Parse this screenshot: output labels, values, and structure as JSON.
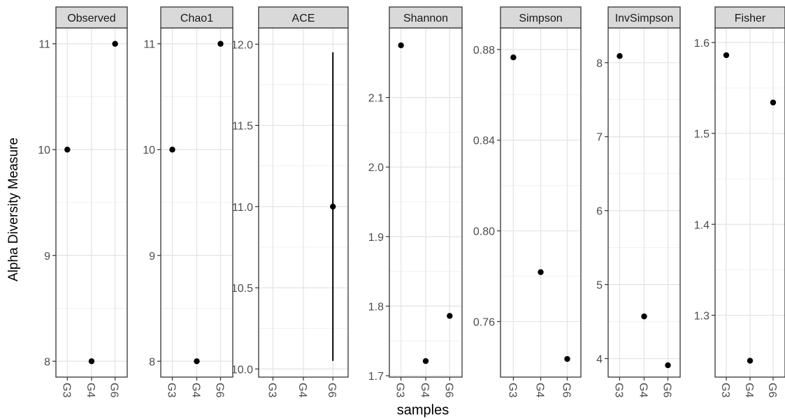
{
  "chart_data": {
    "type": "scatter",
    "ylabel": "Alpha Diversity Measure",
    "xlabel": "samples",
    "categories": [
      "G3",
      "G4",
      "G6"
    ],
    "grid": true,
    "panels": [
      {
        "name": "Observed",
        "yticks": [
          "8",
          "9",
          "10",
          "11"
        ],
        "tick_values": [
          8,
          9,
          10,
          11
        ],
        "ylim": [
          7.85,
          11.15
        ],
        "points": [
          {
            "x": "G3",
            "y": 10
          },
          {
            "x": "G4",
            "y": 8
          },
          {
            "x": "G6",
            "y": 11
          }
        ]
      },
      {
        "name": "Chao1",
        "yticks": [
          "8",
          "9",
          "10",
          "11"
        ],
        "tick_values": [
          8,
          9,
          10,
          11
        ],
        "ylim": [
          7.85,
          11.15
        ],
        "points": [
          {
            "x": "G3",
            "y": 10
          },
          {
            "x": "G4",
            "y": 8
          },
          {
            "x": "G6",
            "y": 11
          }
        ]
      },
      {
        "name": "ACE",
        "yticks": [
          "10.0",
          "10.5",
          "11.0",
          "11.5",
          "12.0"
        ],
        "tick_values": [
          10.0,
          10.5,
          11.0,
          11.5,
          12.0
        ],
        "ylim": [
          9.95,
          12.1
        ],
        "points": [
          {
            "x": "G6",
            "y": 11.0,
            "err_low": 10.05,
            "err_high": 11.95
          }
        ]
      },
      {
        "name": "Shannon",
        "yticks": [
          "1.7",
          "1.8",
          "1.9",
          "2.0",
          "2.1"
        ],
        "tick_values": [
          1.7,
          1.8,
          1.9,
          2.0,
          2.1
        ],
        "ylim": [
          1.698,
          2.2
        ],
        "points": [
          {
            "x": "G3",
            "y": 2.175
          },
          {
            "x": "G4",
            "y": 1.721
          },
          {
            "x": "G6",
            "y": 1.786
          }
        ]
      },
      {
        "name": "Simpson",
        "yticks": [
          "0.76",
          "0.80",
          "0.84",
          "0.88"
        ],
        "tick_values": [
          0.76,
          0.8,
          0.84,
          0.88
        ],
        "ylim": [
          0.7355,
          0.8895
        ],
        "points": [
          {
            "x": "G3",
            "y": 0.8765
          },
          {
            "x": "G4",
            "y": 0.7818
          },
          {
            "x": "G6",
            "y": 0.7435
          }
        ]
      },
      {
        "name": "InvSimpson",
        "yticks": [
          "4",
          "5",
          "6",
          "7",
          "8"
        ],
        "tick_values": [
          4,
          5,
          6,
          7,
          8
        ],
        "ylim": [
          3.75,
          8.47
        ],
        "points": [
          {
            "x": "G3",
            "y": 8.09
          },
          {
            "x": "G4",
            "y": 4.57
          },
          {
            "x": "G6",
            "y": 3.91
          }
        ]
      },
      {
        "name": "Fisher",
        "yticks": [
          "1.3",
          "1.4",
          "1.5",
          "1.6"
        ],
        "tick_values": [
          1.3,
          1.4,
          1.5,
          1.6
        ],
        "ylim": [
          1.232,
          1.616
        ],
        "points": [
          {
            "x": "G3",
            "y": 1.586
          },
          {
            "x": "G4",
            "y": 1.25
          },
          {
            "x": "G6",
            "y": 1.534
          }
        ]
      }
    ]
  }
}
